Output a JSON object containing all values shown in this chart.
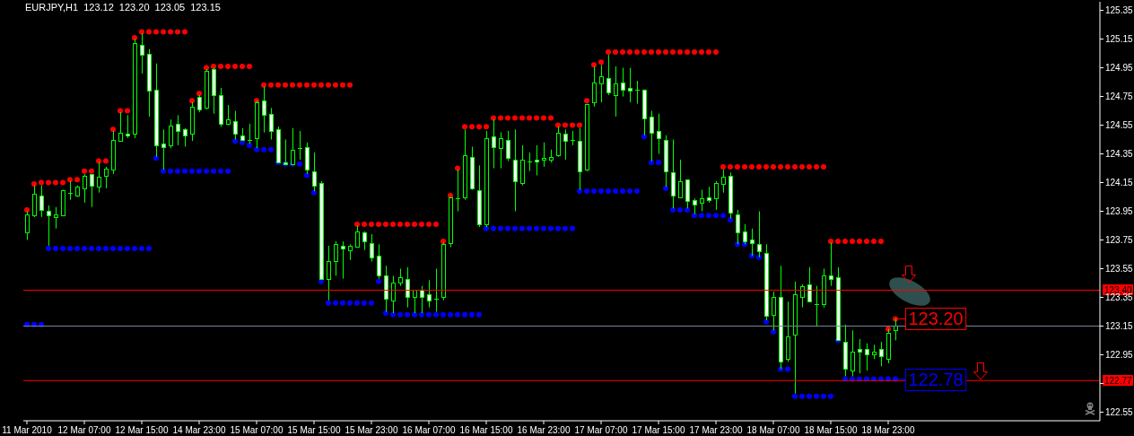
{
  "chart_data": {
    "type": "candlestick",
    "title": "EURJPY,H1 123.12 123.20 123.05 123.15",
    "categories": [
      "11 Mar 2010",
      null,
      null,
      null,
      null,
      null,
      null,
      null,
      "12 Mar 07:00",
      null,
      null,
      null,
      null,
      null,
      null,
      null,
      "12 Mar 15:00",
      null,
      null,
      null,
      null,
      null,
      null,
      null,
      "14 Mar 23:00",
      null,
      null,
      null,
      null,
      null,
      null,
      null,
      "15 Mar 07:00",
      null,
      null,
      null,
      null,
      null,
      null,
      null,
      "15 Mar 15:00",
      null,
      null,
      null,
      null,
      null,
      null,
      null,
      "15 Mar 23:00",
      null,
      null,
      null,
      null,
      null,
      null,
      null,
      "16 Mar 07:00",
      null,
      null,
      null,
      null,
      null,
      null,
      null,
      "16 Mar 15:00",
      null,
      null,
      null,
      null,
      null,
      null,
      null,
      "16 Mar 23:00",
      null,
      null,
      null,
      null,
      null,
      null,
      null,
      "17 Mar 07:00",
      null,
      null,
      null,
      null,
      null,
      null,
      null,
      "17 Mar 15:00",
      null,
      null,
      null,
      null,
      null,
      null,
      null,
      "17 Mar 23:00",
      null,
      null,
      null,
      null,
      null,
      null,
      null,
      "18 Mar 07:00",
      null,
      null,
      null,
      null,
      null,
      null,
      null,
      "18 Mar 15:00",
      null,
      null,
      null,
      null,
      null,
      null,
      null,
      "18 Mar 23:00",
      null,
      null,
      null,
      null,
      null,
      null,
      null,
      null,
      null,
      null,
      null,
      null,
      null,
      null,
      null,
      null,
      null,
      null,
      null,
      null,
      null,
      null,
      null,
      null,
      null,
      null,
      null,
      null,
      null
    ],
    "ohlc": [
      [
        123.8,
        123.95,
        123.75,
        123.93
      ],
      [
        123.92,
        124.13,
        123.91,
        124.07
      ],
      [
        124.06,
        124.13,
        123.91,
        123.96
      ],
      [
        123.95,
        123.99,
        123.71,
        123.92
      ],
      [
        123.91,
        123.98,
        123.83,
        123.93
      ],
      [
        123.92,
        124.1,
        123.92,
        124.1
      ],
      [
        124.08,
        124.16,
        124.03,
        124.08
      ],
      [
        124.06,
        124.13,
        124.05,
        124.12
      ],
      [
        124.11,
        124.21,
        124.01,
        124.2
      ],
      [
        124.21,
        124.21,
        123.98,
        124.13
      ],
      [
        124.12,
        124.29,
        124.08,
        124.19
      ],
      [
        124.2,
        124.26,
        124.11,
        124.25
      ],
      [
        124.24,
        124.51,
        124.21,
        124.45
      ],
      [
        124.44,
        124.64,
        124.44,
        124.5
      ],
      [
        124.49,
        124.62,
        124.46,
        124.48
      ],
      [
        124.49,
        125.15,
        124.46,
        125.12
      ],
      [
        125.11,
        125.19,
        124.91,
        125.04
      ],
      [
        125.05,
        125.08,
        124.61,
        124.79
      ],
      [
        124.8,
        124.98,
        124.33,
        124.41
      ],
      [
        124.42,
        124.52,
        124.24,
        124.4
      ],
      [
        124.41,
        124.59,
        124.39,
        124.55
      ],
      [
        124.56,
        124.62,
        124.41,
        124.51
      ],
      [
        124.52,
        124.53,
        124.4,
        124.48
      ],
      [
        124.49,
        124.71,
        124.44,
        124.68
      ],
      [
        124.75,
        124.76,
        124.64,
        124.66
      ],
      [
        124.67,
        124.94,
        124.66,
        124.93
      ],
      [
        124.94,
        124.95,
        124.63,
        124.76
      ],
      [
        124.76,
        124.81,
        124.54,
        124.56
      ],
      [
        124.56,
        124.69,
        124.55,
        124.59
      ],
      [
        124.58,
        124.65,
        124.45,
        124.49
      ],
      [
        124.48,
        124.53,
        124.44,
        124.45
      ],
      [
        124.45,
        124.56,
        124.42,
        124.45
      ],
      [
        124.46,
        124.72,
        124.39,
        124.71
      ],
      [
        124.72,
        124.82,
        124.5,
        124.62
      ],
      [
        124.63,
        124.67,
        124.45,
        124.51
      ],
      [
        124.52,
        124.54,
        124.29,
        124.29
      ],
      [
        124.29,
        124.45,
        124.28,
        124.28
      ],
      [
        124.28,
        124.53,
        124.27,
        124.38
      ],
      [
        124.39,
        124.51,
        124.31,
        124.39
      ],
      [
        124.4,
        124.43,
        124.21,
        124.24
      ],
      [
        124.23,
        124.36,
        124.09,
        124.13
      ],
      [
        124.15,
        124.16,
        123.48,
        123.48
      ],
      [
        123.48,
        123.71,
        123.33,
        123.6
      ],
      [
        123.6,
        123.74,
        123.5,
        123.72
      ],
      [
        123.71,
        123.74,
        123.48,
        123.69
      ],
      [
        123.68,
        123.72,
        123.61,
        123.71
      ],
      [
        123.7,
        123.85,
        123.7,
        123.81
      ],
      [
        123.8,
        123.81,
        123.68,
        123.74
      ],
      [
        123.73,
        123.79,
        123.6,
        123.63
      ],
      [
        123.64,
        123.72,
        123.48,
        123.5
      ],
      [
        123.5,
        123.57,
        123.25,
        123.34
      ],
      [
        123.33,
        123.5,
        123.24,
        123.45
      ],
      [
        123.45,
        123.55,
        123.43,
        123.49
      ],
      [
        123.48,
        123.56,
        123.28,
        123.35
      ],
      [
        123.35,
        123.4,
        123.24,
        123.4
      ],
      [
        123.4,
        123.43,
        123.24,
        123.35
      ],
      [
        123.37,
        123.47,
        123.28,
        123.33
      ],
      [
        123.34,
        123.55,
        123.25,
        123.34
      ],
      [
        123.35,
        123.73,
        123.33,
        123.72
      ],
      [
        123.73,
        124.05,
        123.7,
        124.05
      ],
      [
        124.04,
        124.24,
        123.95,
        124.04
      ],
      [
        124.05,
        124.52,
        124.03,
        124.34
      ],
      [
        124.33,
        124.4,
        124.1,
        124.11
      ],
      [
        124.1,
        124.27,
        123.84,
        123.86
      ],
      [
        123.86,
        124.51,
        123.84,
        124.46
      ],
      [
        124.47,
        124.59,
        124.25,
        124.4
      ],
      [
        124.39,
        124.5,
        124.25,
        124.46
      ],
      [
        124.45,
        124.51,
        124.3,
        124.32
      ],
      [
        124.31,
        124.52,
        123.95,
        124.16
      ],
      [
        124.15,
        124.41,
        124.13,
        124.31
      ],
      [
        124.3,
        124.36,
        124.23,
        124.3
      ],
      [
        124.31,
        124.41,
        124.2,
        124.3
      ],
      [
        124.31,
        124.43,
        124.26,
        124.32
      ],
      [
        124.31,
        124.38,
        124.29,
        124.33
      ],
      [
        124.34,
        124.54,
        124.33,
        124.5
      ],
      [
        124.49,
        124.52,
        124.31,
        124.44
      ],
      [
        124.45,
        124.51,
        124.41,
        124.45
      ],
      [
        124.44,
        124.53,
        124.1,
        124.23
      ],
      [
        124.24,
        124.7,
        124.23,
        124.7
      ],
      [
        124.71,
        124.96,
        124.68,
        124.85
      ],
      [
        124.84,
        124.97,
        124.71,
        124.89
      ],
      [
        124.88,
        125.04,
        124.76,
        124.78
      ],
      [
        124.76,
        124.96,
        124.61,
        124.84
      ],
      [
        124.85,
        124.95,
        124.75,
        124.8
      ],
      [
        124.81,
        124.95,
        124.71,
        124.79
      ],
      [
        124.8,
        124.86,
        124.7,
        124.8
      ],
      [
        124.8,
        124.8,
        124.48,
        124.6
      ],
      [
        124.61,
        124.65,
        124.3,
        124.5
      ],
      [
        124.51,
        124.63,
        124.35,
        124.46
      ],
      [
        124.45,
        124.48,
        124.12,
        124.23
      ],
      [
        124.22,
        124.45,
        123.97,
        124.06
      ],
      [
        124.05,
        124.31,
        124.05,
        124.16
      ],
      [
        124.17,
        124.17,
        123.97,
        124.02
      ],
      [
        124.03,
        124.04,
        123.93,
        124.0
      ],
      [
        124.01,
        124.1,
        123.95,
        124.04
      ],
      [
        124.05,
        124.12,
        124.01,
        124.03
      ],
      [
        124.04,
        124.16,
        123.96,
        124.15
      ],
      [
        124.14,
        124.24,
        124.08,
        124.19
      ],
      [
        124.2,
        124.22,
        123.9,
        123.94
      ],
      [
        123.93,
        123.96,
        123.72,
        123.8
      ],
      [
        123.81,
        123.86,
        123.72,
        123.74
      ],
      [
        123.75,
        123.83,
        123.64,
        123.73
      ],
      [
        123.72,
        123.95,
        123.63,
        123.67
      ],
      [
        123.66,
        123.72,
        123.19,
        123.22
      ],
      [
        123.23,
        123.39,
        123.12,
        123.35
      ],
      [
        123.35,
        123.57,
        122.85,
        122.9
      ],
      [
        122.92,
        123.32,
        122.9,
        123.08
      ],
      [
        123.09,
        123.46,
        122.68,
        123.37
      ],
      [
        123.35,
        123.44,
        123.28,
        123.43
      ],
      [
        123.44,
        123.56,
        123.32,
        123.32
      ],
      [
        123.3,
        123.43,
        123.15,
        123.3
      ],
      [
        123.3,
        123.55,
        123.28,
        123.5
      ],
      [
        123.5,
        123.73,
        123.43,
        123.48
      ],
      [
        123.49,
        123.56,
        123.05,
        123.05
      ],
      [
        123.04,
        123.16,
        122.8,
        122.85
      ],
      [
        122.84,
        123.12,
        122.8,
        122.97
      ],
      [
        122.99,
        123.06,
        122.82,
        122.97
      ],
      [
        122.99,
        123.03,
        122.84,
        122.95
      ],
      [
        122.95,
        123.02,
        122.92,
        122.97
      ],
      [
        122.99,
        123.04,
        122.87,
        122.94
      ],
      [
        122.92,
        123.13,
        122.89,
        123.1
      ],
      [
        123.12,
        123.2,
        123.05,
        123.15
      ],
      null,
      null,
      null,
      null,
      null,
      null,
      null,
      null,
      null,
      null,
      null,
      null,
      null,
      null,
      null,
      null,
      null,
      null,
      null,
      null,
      null,
      null,
      null,
      null,
      null,
      null,
      null,
      null
    ],
    "color": "#00ff00",
    "colors": [
      "#000000",
      "#000000",
      "#ffffff",
      "#ffffff",
      "#000000",
      "#000000",
      "#00ff00",
      "#000000",
      "#000000",
      "#ffffff",
      "#000000",
      "#000000",
      "#000000",
      "#000000",
      "#ffffff",
      "#000000",
      "#ffffff",
      "#ffffff",
      "#ffffff",
      "#ffffff",
      "#000000",
      "#ffffff",
      "#ffffff",
      "#000000",
      "#ffffff",
      "#000000",
      "#ffffff",
      "#ffffff",
      "#000000",
      "#ffffff",
      "#ffffff",
      "#00ff00",
      "#000000",
      "#ffffff",
      "#ffffff",
      "#ffffff",
      "#ffffff",
      "#000000",
      "#00ff00",
      "#ffffff",
      "#ffffff",
      "#ffffff",
      "#000000",
      "#000000",
      "#ffffff",
      "#000000",
      "#000000",
      "#ffffff",
      "#ffffff",
      "#ffffff",
      "#ffffff",
      "#000000",
      "#000000",
      "#ffffff",
      "#000000",
      "#ffffff",
      "#ffffff",
      "#00ff00",
      "#000000",
      "#000000",
      "#00ff00",
      "#000000",
      "#ffffff",
      "#ffffff",
      "#000000",
      "#ffffff",
      "#000000",
      "#ffffff",
      "#ffffff",
      "#000000",
      "#00ff00",
      "#ffffff",
      "#000000",
      "#000000",
      "#000000",
      "#ffffff",
      "#00ff00",
      "#ffffff",
      "#000000",
      "#000000",
      "#000000",
      "#ffffff",
      "#000000",
      "#ffffff",
      "#ffffff",
      "#00ff00",
      "#ffffff",
      "#ffffff",
      "#ffffff",
      "#ffffff",
      "#ffffff",
      "#000000",
      "#ffffff",
      "#ffffff",
      "#000000",
      "#ffffff",
      "#000000",
      "#000000",
      "#ffffff",
      "#ffffff",
      "#ffffff",
      "#ffffff",
      "#ffffff",
      "#ffffff",
      "#000000",
      "#ffffff",
      "#000000",
      "#000000",
      "#000000",
      "#ffffff",
      "#00ff00",
      "#000000",
      "#ffffff",
      "#ffffff",
      "#ffffff",
      "#000000",
      "#ffffff",
      "#ffffff",
      "#000000",
      "#ffffff",
      "#000000",
      "#000000",
      null,
      null,
      null,
      null,
      null,
      null,
      null,
      null,
      null,
      null,
      null,
      null,
      null,
      null,
      null,
      null,
      null,
      null,
      null,
      null,
      null,
      null,
      null,
      null,
      null,
      null,
      null,
      null
    ],
    "series": [
      {
        "type": "scatter",
        "color": "#ff0000",
        "marker": "circle",
        "values": [
          123.96,
          124.14,
          124.15,
          124.15,
          124.15,
          124.15,
          124.17,
          124.17,
          124.23,
          124.23,
          124.3,
          124.3,
          124.52,
          124.65,
          124.65,
          125.16,
          125.2,
          125.2,
          125.2,
          125.2,
          125.2,
          125.2,
          125.2,
          124.72,
          124.77,
          124.95,
          124.96,
          124.96,
          124.96,
          124.96,
          124.96,
          124.96,
          124.72,
          124.83,
          124.83,
          124.83,
          124.83,
          124.83,
          124.83,
          124.83,
          124.83,
          124.83,
          124.83,
          124.83,
          124.83,
          124.83,
          123.86,
          123.86,
          123.86,
          123.86,
          123.86,
          123.86,
          123.86,
          123.86,
          123.86,
          123.86,
          123.86,
          123.86,
          123.74,
          124.06,
          124.25,
          124.54,
          124.54,
          124.54,
          124.54,
          124.6,
          124.6,
          124.6,
          124.6,
          124.6,
          124.6,
          124.6,
          124.6,
          124.6,
          124.55,
          124.55,
          124.55,
          124.55,
          124.72,
          124.97,
          124.99,
          125.06,
          125.06,
          125.06,
          125.06,
          125.06,
          125.06,
          125.06,
          125.06,
          125.06,
          125.06,
          125.06,
          125.06,
          125.06,
          125.06,
          125.06,
          125.06,
          124.26,
          124.26,
          124.26,
          124.26,
          124.26,
          124.26,
          124.26,
          124.26,
          124.26,
          124.26,
          124.26,
          124.26,
          124.26,
          124.26,
          124.26,
          123.74,
          123.74,
          123.74,
          123.74,
          123.74,
          123.74,
          123.74,
          123.74,
          123.13,
          123.2,
          null,
          null,
          null,
          null,
          null,
          null,
          null,
          null,
          null,
          null,
          null,
          null,
          null,
          null,
          null,
          null,
          null,
          null,
          null,
          null,
          null,
          null,
          null,
          null,
          null,
          null,
          null,
          null
        ],
        "value_labels": [
          null,
          null,
          null,
          null,
          null,
          null,
          null,
          null,
          null,
          null,
          null,
          null,
          null,
          null,
          null,
          null,
          null,
          null,
          null,
          null,
          null,
          null,
          null,
          null,
          null,
          null,
          null,
          null,
          null,
          null,
          null,
          null,
          null,
          null,
          null,
          null,
          null,
          null,
          null,
          null,
          null,
          null,
          null,
          null,
          null,
          null,
          null,
          null,
          null,
          null,
          null,
          null,
          null,
          null,
          null,
          null,
          null,
          null,
          null,
          null,
          null,
          null,
          null,
          null,
          null,
          null,
          null,
          null,
          null,
          null,
          null,
          null,
          null,
          null,
          null,
          null,
          null,
          null,
          null,
          null,
          null,
          null,
          null,
          null,
          null,
          null,
          null,
          null,
          null,
          null,
          null,
          null,
          null,
          null,
          null,
          null,
          null,
          null,
          null,
          null,
          null,
          null,
          null,
          null,
          null,
          null,
          null,
          null,
          null,
          null,
          null,
          null,
          null,
          null,
          null,
          null,
          null,
          null,
          null,
          null,
          null,
          "123.20",
          null,
          null,
          null,
          null,
          null,
          null,
          null,
          null,
          null,
          null,
          null,
          null,
          null,
          null,
          null,
          null,
          null,
          null,
          null,
          null,
          null,
          null,
          null,
          null,
          null,
          null,
          null,
          null
        ]
      },
      {
        "type": "scatter",
        "color": "#0000ff",
        "marker": "circle",
        "values": [
          123.16,
          123.16,
          123.16,
          123.69,
          123.69,
          123.69,
          123.69,
          123.69,
          123.69,
          123.69,
          123.69,
          123.69,
          123.69,
          123.69,
          123.69,
          123.69,
          123.69,
          123.69,
          124.32,
          124.23,
          124.23,
          124.23,
          124.23,
          124.23,
          124.23,
          124.23,
          124.23,
          124.23,
          124.23,
          124.44,
          124.43,
          124.41,
          124.38,
          124.38,
          124.38,
          124.29,
          124.28,
          124.28,
          124.28,
          124.2,
          124.08,
          123.46,
          123.31,
          123.31,
          123.31,
          123.31,
          123.31,
          123.31,
          123.31,
          123.46,
          123.24,
          123.23,
          123.23,
          123.23,
          123.23,
          123.23,
          123.23,
          123.23,
          123.23,
          123.23,
          123.23,
          123.23,
          123.23,
          123.23,
          123.83,
          123.83,
          123.83,
          123.83,
          123.83,
          123.83,
          123.83,
          123.83,
          123.83,
          123.83,
          123.83,
          123.83,
          123.83,
          124.09,
          124.09,
          124.09,
          124.09,
          124.09,
          124.09,
          124.09,
          124.09,
          124.09,
          124.47,
          124.29,
          124.29,
          124.11,
          123.96,
          123.96,
          123.96,
          123.92,
          123.92,
          123.92,
          123.92,
          123.92,
          123.89,
          123.72,
          123.72,
          123.64,
          123.63,
          123.18,
          123.11,
          122.85,
          122.85,
          122.66,
          122.66,
          122.66,
          122.66,
          122.66,
          122.66,
          123.05,
          122.78,
          122.78,
          122.78,
          122.78,
          122.78,
          122.78,
          122.78,
          122.78,
          null,
          null,
          null,
          null,
          null,
          null,
          null,
          null,
          null,
          null,
          null,
          null,
          null,
          null,
          null,
          null,
          null,
          null,
          null,
          null,
          null,
          null,
          null,
          null,
          null,
          null,
          null,
          null
        ],
        "value_labels": [
          null,
          null,
          null,
          null,
          null,
          null,
          null,
          null,
          null,
          null,
          null,
          null,
          null,
          null,
          null,
          null,
          null,
          null,
          null,
          null,
          null,
          null,
          null,
          null,
          null,
          null,
          null,
          null,
          null,
          null,
          null,
          null,
          null,
          null,
          null,
          null,
          null,
          null,
          null,
          null,
          null,
          null,
          null,
          null,
          null,
          null,
          null,
          null,
          null,
          null,
          null,
          null,
          null,
          null,
          null,
          null,
          null,
          null,
          null,
          null,
          null,
          null,
          null,
          null,
          null,
          null,
          null,
          null,
          null,
          null,
          null,
          null,
          null,
          null,
          null,
          null,
          null,
          null,
          null,
          null,
          null,
          null,
          null,
          null,
          null,
          null,
          null,
          null,
          null,
          null,
          null,
          null,
          null,
          null,
          null,
          null,
          null,
          null,
          null,
          null,
          null,
          null,
          null,
          null,
          null,
          null,
          null,
          null,
          null,
          null,
          null,
          null,
          null,
          null,
          null,
          null,
          null,
          null,
          null,
          null,
          null,
          "122.78",
          null,
          null,
          null,
          null,
          null,
          null,
          null,
          null,
          null,
          null,
          null,
          null,
          null,
          null,
          null,
          null,
          null,
          null,
          null,
          null,
          null,
          null,
          null,
          null,
          null,
          null,
          null,
          null
        ]
      }
    ],
    "ylim": [
      122.49,
      125.41
    ],
    "yticks": [
      125.35,
      125.15,
      124.95,
      124.75,
      124.55,
      124.35,
      124.15,
      123.95,
      123.75,
      123.55,
      123.35,
      123.15,
      122.95,
      {
        "value": 122.75,
        "label": null
      },
      122.55
    ],
    "ref_lines": [
      {
        "axis": "y",
        "value": 123.4,
        "label": "123.40",
        "color": "#ff0000"
      },
      {
        "axis": "y",
        "value": 123.15,
        "color": "#778899"
      },
      {
        "axis": "y",
        "value": 122.77,
        "label": "122.77",
        "color": "#ff0000"
      }
    ]
  }
}
